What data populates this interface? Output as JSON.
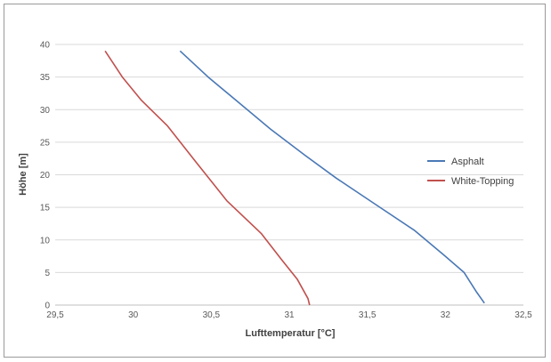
{
  "chart_data": {
    "type": "line",
    "xlabel": "Lufttemperatur [°C]",
    "ylabel": "Höhe [m]",
    "xlim": [
      29.5,
      32.5
    ],
    "ylim": [
      0,
      40
    ],
    "x_ticks": [
      "29,5",
      "30",
      "30,5",
      "31",
      "31,5",
      "32",
      "32,5"
    ],
    "y_ticks": [
      "0",
      "5",
      "10",
      "15",
      "20",
      "25",
      "30",
      "35",
      "40"
    ],
    "grid": "horizontal",
    "legend_position": "right",
    "series": [
      {
        "name": "Asphalt",
        "color": "#4a78b5",
        "points": [
          [
            30.3,
            39
          ],
          [
            30.48,
            35
          ],
          [
            30.68,
            31
          ],
          [
            30.88,
            27
          ],
          [
            31.1,
            23
          ],
          [
            31.3,
            19.5
          ],
          [
            31.55,
            15.5
          ],
          [
            31.8,
            11.5
          ],
          [
            32.0,
            7.5
          ],
          [
            32.12,
            5
          ],
          [
            32.2,
            2
          ],
          [
            32.25,
            0.3
          ]
        ]
      },
      {
        "name": "White-Topping",
        "color": "#c0504d",
        "points": [
          [
            29.82,
            39
          ],
          [
            29.93,
            35
          ],
          [
            30.05,
            31.5
          ],
          [
            30.22,
            27.5
          ],
          [
            30.4,
            22
          ],
          [
            30.6,
            16
          ],
          [
            30.82,
            11
          ],
          [
            30.95,
            7
          ],
          [
            31.05,
            4
          ],
          [
            31.12,
            1
          ],
          [
            31.13,
            0
          ]
        ]
      }
    ]
  }
}
